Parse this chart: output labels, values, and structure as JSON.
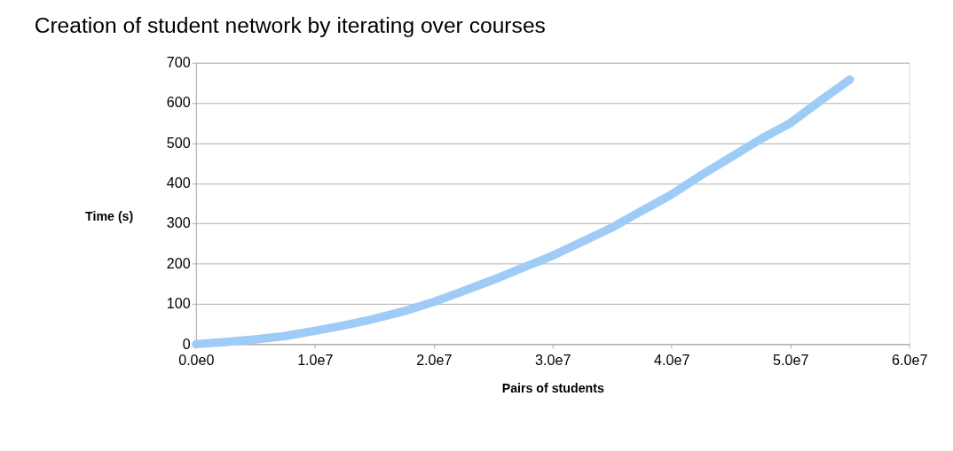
{
  "chart_data": {
    "type": "line",
    "title": "Creation of student network by iterating over courses",
    "xlabel": "Pairs of students",
    "ylabel": "Time (s)",
    "x": [
      0,
      2500000,
      5000000,
      7500000,
      10000000,
      12500000,
      15000000,
      17500000,
      20000000,
      22500000,
      25000000,
      27500000,
      30000000,
      32500000,
      35000000,
      36500000,
      40000000,
      42500000,
      45000000,
      47500000,
      50000000,
      52500000,
      55000000
    ],
    "series": [
      {
        "color": "#9fcbf7",
        "values": [
          0,
          5,
          12,
          20,
          33,
          47,
          63,
          82,
          105,
          132,
          160,
          190,
          220,
          255,
          290,
          315,
          372,
          420,
          465,
          510,
          550,
          605,
          658
        ]
      }
    ],
    "xlim": [
      0,
      60000000
    ],
    "xticks": [
      {
        "value": 0,
        "label": "0.0e0"
      },
      {
        "value": 10000000,
        "label": "1.0e7"
      },
      {
        "value": 20000000,
        "label": "2.0e7"
      },
      {
        "value": 30000000,
        "label": "3.0e7"
      },
      {
        "value": 40000000,
        "label": "4.0e7"
      },
      {
        "value": 50000000,
        "label": "5.0e7"
      },
      {
        "value": 60000000,
        "label": "6.0e7"
      }
    ],
    "ylim": [
      0,
      700
    ],
    "yticks": [
      0,
      100,
      200,
      300,
      400,
      500,
      600,
      700
    ],
    "grid": "y",
    "line_style": "solid"
  }
}
